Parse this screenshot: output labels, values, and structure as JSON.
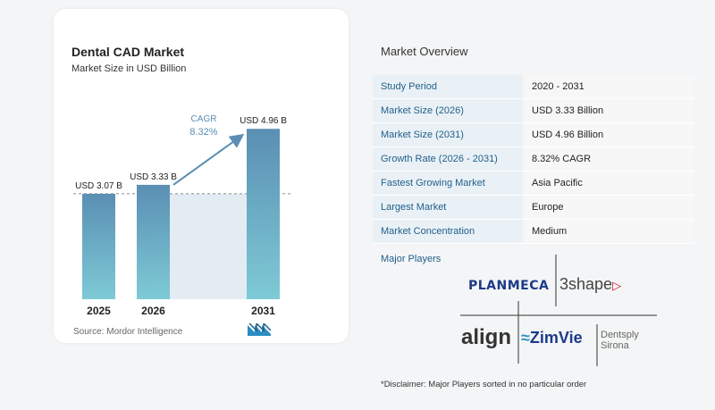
{
  "chart_data": {
    "type": "bar",
    "title": "Dental CAD Market",
    "subtitle": "Market Size in USD Billion",
    "categories": [
      "2025",
      "2026",
      "2031"
    ],
    "values": [
      3.07,
      3.33,
      4.96
    ],
    "data_labels": [
      "USD 3.07 B",
      "USD 3.33 B",
      "USD 4.96 B"
    ],
    "cagr_label": "CAGR",
    "cagr_value": "8.32%",
    "ylim": [
      0,
      5.2
    ],
    "grid": false,
    "bar_color_top": "#5a8fb3",
    "bar_color_bottom": "#7ecad6",
    "source": "Source:  Mordor Intelligence"
  },
  "overview": {
    "title": "Market Overview",
    "rows": [
      {
        "label": "Study Period",
        "value": "2020 - 2031"
      },
      {
        "label": "Market Size (2026)",
        "value": "USD 3.33 Billion"
      },
      {
        "label": "Market Size (2031)",
        "value": "USD 4.96 Billion"
      },
      {
        "label": "Growth Rate (2026 - 2031)",
        "value": "8.32% CAGR"
      },
      {
        "label": "Fastest Growing Market",
        "value": "Asia Pacific"
      },
      {
        "label": "Largest Market",
        "value": "Europe"
      },
      {
        "label": "Market Concentration",
        "value": "Medium"
      }
    ]
  },
  "players": {
    "title": "Major Players",
    "logos": [
      "PLANMECA",
      "3shape",
      "align",
      "ZimVie",
      "Dentsply",
      "Sirona"
    ],
    "disclaimer": "*Disclaimer: Major Players sorted in no particular order"
  },
  "colors": {
    "accent": "#1f5f8b",
    "label_bg": "#eaf1f6",
    "value_bg": "#f7f7f7"
  }
}
